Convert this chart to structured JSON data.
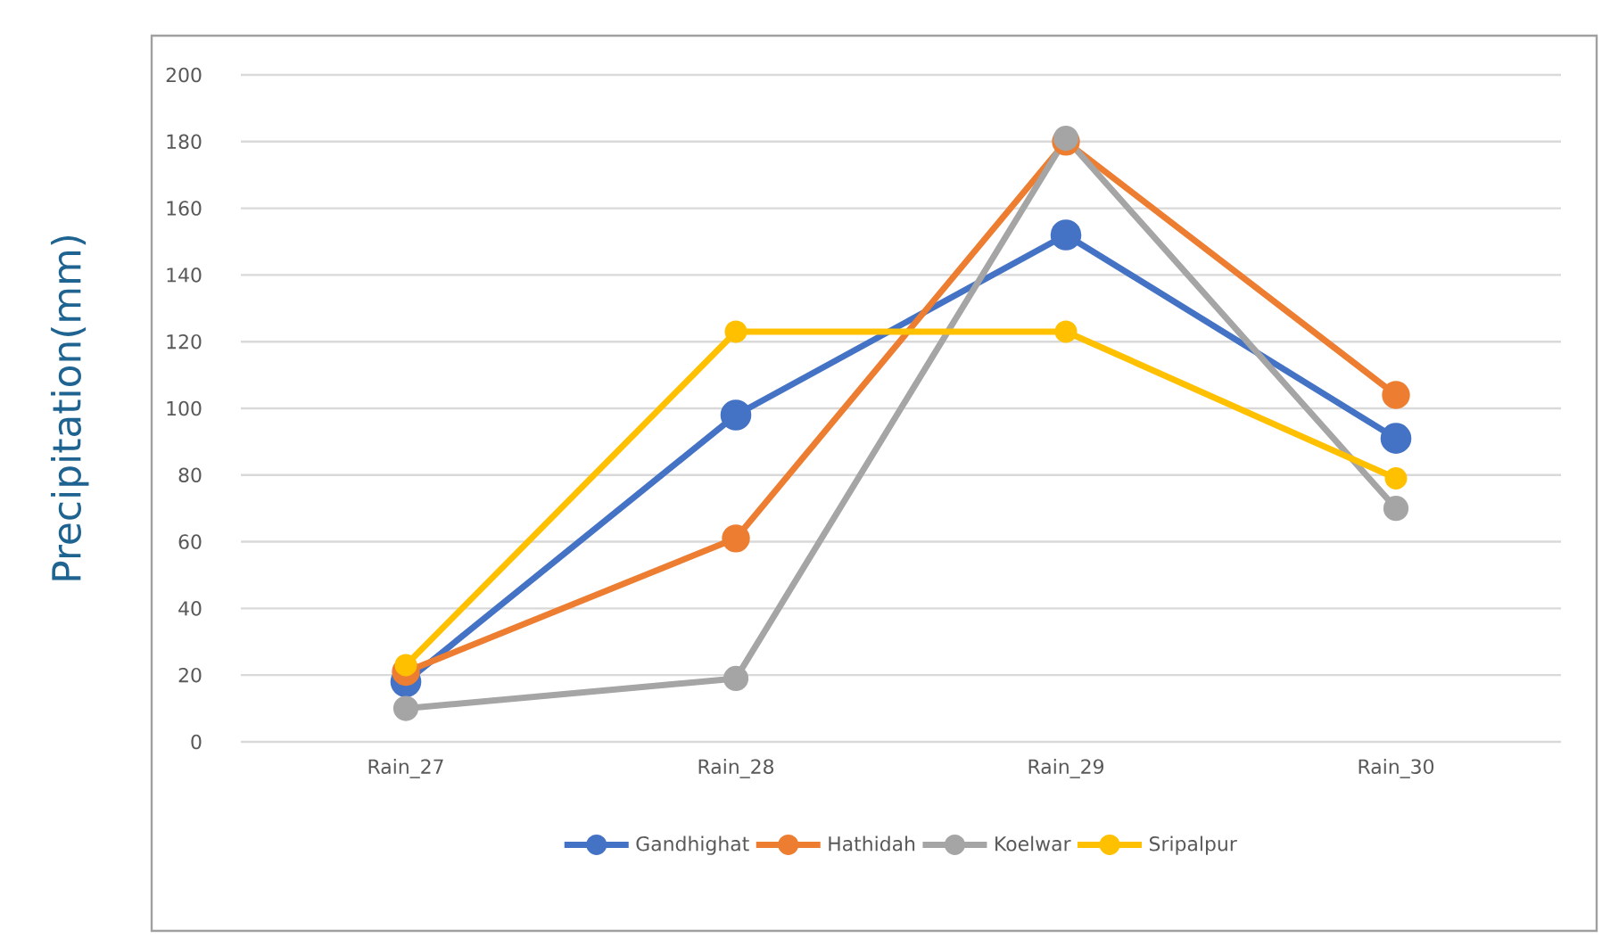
{
  "chart_data": {
    "type": "line",
    "ylabel": "Precipitation(mm)",
    "categories": [
      "Rain_27",
      "Rain_28",
      "Rain_29",
      "Rain_30"
    ],
    "series": [
      {
        "name": "Gandhighat",
        "color": "#4472c4",
        "values": [
          18,
          98,
          152,
          91
        ]
      },
      {
        "name": "Hathidah",
        "color": "#ed7d31",
        "values": [
          21,
          61,
          180,
          104
        ]
      },
      {
        "name": "Koelwar",
        "color": "#a5a5a5",
        "values": [
          10,
          19,
          181,
          70
        ]
      },
      {
        "name": "Sripalpur",
        "color": "#ffc000",
        "values": [
          23,
          123,
          123,
          79
        ]
      }
    ],
    "ylim": [
      0,
      200
    ],
    "yticks": [
      0,
      20,
      40,
      60,
      80,
      100,
      120,
      140,
      160,
      180,
      200
    ],
    "grid": "y",
    "legend": "bottom",
    "marker": "circle",
    "line_style": "solid"
  }
}
